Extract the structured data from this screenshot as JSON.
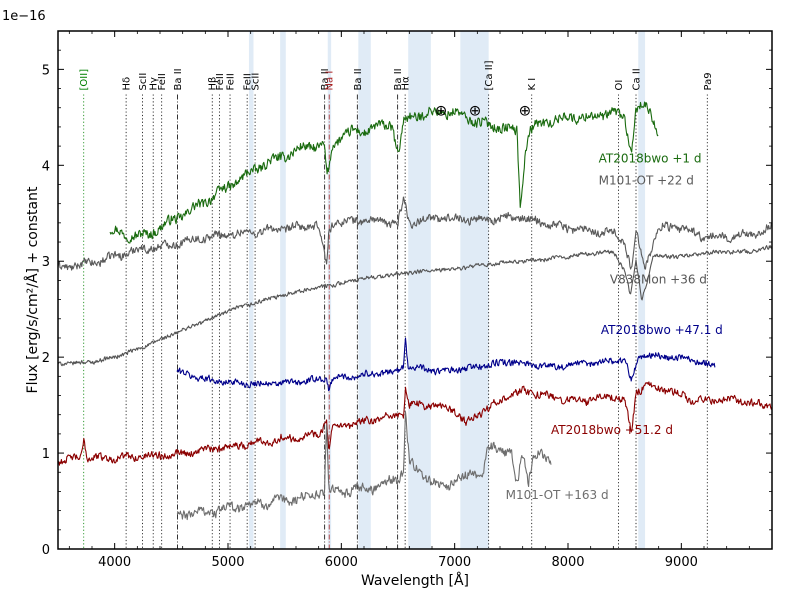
{
  "chart_data": {
    "type": "line",
    "title": "",
    "xlabel": "Wavelength [Å]",
    "ylabel": "Flux [erg/s/cm²/Å] + constant",
    "scale_label": "1e−16",
    "xlim": [
      3500,
      9800
    ],
    "ylim": [
      0,
      5.4
    ],
    "x_ticks": [
      4000,
      5000,
      6000,
      7000,
      8000,
      9000
    ],
    "x_tick_labels": [
      "4000",
      "5000",
      "6000",
      "7000",
      "8000",
      "9000"
    ],
    "y_ticks": [
      0,
      1,
      2,
      3,
      4,
      5
    ],
    "y_tick_labels": [
      "0",
      "1",
      "2",
      "3",
      "4",
      "5"
    ],
    "telluric_symbol": "⊕",
    "telluric_markers": [
      6880,
      7180,
      7620
    ],
    "shaded_bands": [
      [
        5185,
        5225
      ],
      [
        5460,
        5510
      ],
      [
        5880,
        5910
      ],
      [
        6150,
        6260
      ],
      [
        6590,
        6790
      ],
      [
        7050,
        7300
      ],
      [
        8620,
        8680
      ]
    ],
    "lines": [
      {
        "label": "[OII]",
        "x": 3727,
        "color": "#008000",
        "style": "dotted"
      },
      {
        "label": "Hδ",
        "x": 4101,
        "color": "#000000",
        "style": "dotted"
      },
      {
        "label": "ScII",
        "x": 4246,
        "color": "#000000",
        "style": "dotted"
      },
      {
        "label": "Hγ",
        "x": 4340,
        "color": "#000000",
        "style": "dotted"
      },
      {
        "label": "FeII",
        "x": 4415,
        "color": "#000000",
        "style": "dotted"
      },
      {
        "label": "Ba II",
        "x": 4554,
        "color": "#000000",
        "style": "dashdot"
      },
      {
        "label": "Hβ",
        "x": 4861,
        "color": "#000000",
        "style": "dotted"
      },
      {
        "label": "FeII",
        "x": 4924,
        "color": "#000000",
        "style": "dotted"
      },
      {
        "label": "FeII",
        "x": 5018,
        "color": "#000000",
        "style": "dotted"
      },
      {
        "label": "FeII",
        "x": 5169,
        "color": "#000000",
        "style": "dotted"
      },
      {
        "label": "ScII",
        "x": 5239,
        "color": "#000000",
        "style": "dotted"
      },
      {
        "label": "Ba II",
        "x": 5853,
        "color": "#000000",
        "style": "dashdot"
      },
      {
        "label": "Na I",
        "x": 5893,
        "color": "#aa2222",
        "style": "dashdot"
      },
      {
        "label": "Ba II",
        "x": 6141,
        "color": "#000000",
        "style": "dashdot"
      },
      {
        "label": "Ba II",
        "x": 6497,
        "color": "#000000",
        "style": "dashdot"
      },
      {
        "label": "Hα",
        "x": 6563,
        "color": "#000000",
        "style": "dotted"
      },
      {
        "label": "[Ca II]",
        "x": 7300,
        "color": "#000000",
        "style": "dotted"
      },
      {
        "label": "K I",
        "x": 7680,
        "color": "#000000",
        "style": "dotted"
      },
      {
        "label": "OI",
        "x": 8446,
        "color": "#000000",
        "style": "dotted"
      },
      {
        "label": "Ca II",
        "x": 8600,
        "color": "#000000",
        "style": "dotted"
      },
      {
        "label": "Pa9",
        "x": 9229,
        "color": "#000000",
        "style": "dotted"
      }
    ],
    "series": [
      {
        "name": "AT2018bwo +1 d",
        "color": "#1a6b0f",
        "label_x": 8270,
        "label_y": 4.03,
        "noise": 0.06,
        "bumps": 1,
        "x": [
          3960,
          4050,
          4090,
          4200,
          4300,
          4500,
          4700,
          4900,
          5100,
          5300,
          5500,
          5700,
          5850,
          5870,
          5890,
          5920,
          6000,
          6100,
          6200,
          6300,
          6450,
          6500,
          6550,
          6600,
          6800,
          7000,
          7200,
          7400,
          7550,
          7580,
          7610,
          7650,
          7700,
          7800,
          8000,
          8200,
          8400,
          8500,
          8560,
          8600,
          8700,
          8800
        ],
        "y": [
          3.32,
          3.3,
          3.28,
          3.26,
          3.28,
          3.42,
          3.55,
          3.7,
          3.85,
          4.0,
          4.1,
          4.2,
          4.2,
          3.9,
          3.95,
          4.2,
          4.3,
          4.35,
          4.35,
          4.4,
          4.42,
          4.1,
          4.45,
          4.5,
          4.55,
          4.55,
          4.45,
          4.4,
          4.35,
          3.55,
          4.0,
          4.35,
          4.4,
          4.45,
          4.5,
          4.5,
          4.55,
          4.5,
          4.1,
          4.6,
          4.6,
          4.35
        ]
      },
      {
        "name": "M101-OT +22 d",
        "color": "#5a5a5a",
        "label_x": 8270,
        "label_y": 3.8,
        "noise": 0.05,
        "bumps": 1,
        "x": [
          3500,
          3800,
          4000,
          4200,
          4400,
          4600,
          4800,
          5000,
          5200,
          5400,
          5600,
          5800,
          5870,
          5890,
          5920,
          6200,
          6500,
          6550,
          6600,
          6800,
          7000,
          7200,
          7400,
          7600,
          7800,
          8000,
          8200,
          8400,
          8500,
          8560,
          8600,
          8680,
          8800,
          9000,
          9200,
          9400,
          9600,
          9800
        ],
        "y": [
          2.93,
          2.98,
          3.05,
          3.12,
          3.15,
          3.2,
          3.25,
          3.28,
          3.3,
          3.33,
          3.35,
          3.37,
          2.95,
          3.3,
          3.4,
          3.43,
          3.4,
          3.65,
          3.4,
          3.45,
          3.45,
          3.43,
          3.45,
          3.45,
          3.4,
          3.35,
          3.32,
          3.3,
          3.2,
          2.9,
          3.3,
          2.95,
          3.35,
          3.35,
          3.25,
          3.25,
          3.28,
          3.35
        ]
      },
      {
        "name": "V838Mon +36 d",
        "color": "#555555",
        "label_x": 8370,
        "label_y": 2.77,
        "noise": 0.025,
        "bumps": 0.5,
        "x": [
          3500,
          3800,
          4000,
          4200,
          4400,
          4600,
          4800,
          5000,
          5200,
          5400,
          5600,
          5800,
          6000,
          6200,
          6400,
          6600,
          6800,
          7000,
          7200,
          7400,
          7600,
          7800,
          8000,
          8200,
          8400,
          8500,
          8550,
          8600,
          8650,
          8680,
          8750,
          9000,
          9200,
          9400,
          9600,
          9800
        ],
        "y": [
          1.93,
          1.95,
          2.0,
          2.08,
          2.18,
          2.28,
          2.38,
          2.48,
          2.55,
          2.62,
          2.68,
          2.73,
          2.77,
          2.82,
          2.85,
          2.88,
          2.9,
          2.92,
          2.95,
          2.98,
          3.0,
          3.02,
          3.05,
          3.08,
          3.1,
          2.9,
          2.65,
          3.0,
          2.6,
          2.7,
          3.05,
          3.05,
          3.08,
          3.1,
          3.1,
          3.15
        ]
      },
      {
        "name": "AT2018bwo +47.1 d",
        "color": "#00008b",
        "label_x": 8290,
        "label_y": 2.24,
        "noise": 0.04,
        "bumps": 0.8,
        "x": [
          4550,
          4700,
          4900,
          5100,
          5300,
          5500,
          5700,
          5870,
          5890,
          5920,
          6100,
          6300,
          6500,
          6550,
          6565,
          6590,
          6700,
          6900,
          7100,
          7300,
          7500,
          7700,
          7900,
          8100,
          8300,
          8500,
          8560,
          8620,
          8700,
          8900,
          9100,
          9300
        ],
        "y": [
          1.85,
          1.8,
          1.75,
          1.73,
          1.72,
          1.73,
          1.75,
          1.78,
          1.65,
          1.78,
          1.8,
          1.83,
          1.85,
          1.9,
          2.25,
          1.9,
          1.88,
          1.85,
          1.88,
          1.92,
          1.95,
          1.92,
          1.9,
          1.93,
          1.95,
          1.98,
          1.75,
          2.0,
          2.02,
          2.0,
          1.98,
          1.9
        ]
      },
      {
        "name": "AT2018bwo +51.2 d",
        "color": "#8b0000",
        "label_x": 7850,
        "label_y": 1.2,
        "noise": 0.045,
        "bumps": 1,
        "x": [
          3500,
          3700,
          3730,
          3760,
          4000,
          4300,
          4600,
          4900,
          5200,
          5500,
          5800,
          5870,
          5890,
          5920,
          6100,
          6300,
          6500,
          6550,
          6565,
          6600,
          6800,
          7000,
          7100,
          7200,
          7400,
          7600,
          7800,
          8000,
          8200,
          8400,
          8500,
          8560,
          8600,
          8700,
          8900,
          9100,
          9300,
          9500,
          9700,
          9800
        ],
        "y": [
          0.92,
          0.95,
          1.15,
          0.95,
          0.95,
          0.97,
          1.0,
          1.05,
          1.1,
          1.15,
          1.2,
          1.35,
          1.0,
          1.25,
          1.3,
          1.35,
          1.4,
          1.4,
          1.7,
          1.5,
          1.5,
          1.45,
          1.3,
          1.4,
          1.55,
          1.65,
          1.6,
          1.55,
          1.55,
          1.6,
          1.55,
          1.2,
          1.65,
          1.7,
          1.65,
          1.55,
          1.55,
          1.55,
          1.5,
          1.5
        ]
      },
      {
        "name": "M101-OT +163 d",
        "color": "#6e6e6e",
        "label_x": 7450,
        "label_y": 0.52,
        "noise": 0.06,
        "bumps": 1,
        "x": [
          4550,
          4700,
          4900,
          5100,
          5300,
          5500,
          5700,
          5850,
          5870,
          5890,
          5920,
          6100,
          6300,
          6500,
          6550,
          6565,
          6600,
          6800,
          6900,
          7000,
          7100,
          7200,
          7250,
          7300,
          7400,
          7500,
          7550,
          7600,
          7650,
          7700,
          7800,
          7850
        ],
        "y": [
          0.35,
          0.38,
          0.4,
          0.45,
          0.48,
          0.5,
          0.55,
          0.6,
          1.3,
          0.6,
          0.6,
          0.6,
          0.65,
          0.75,
          0.8,
          1.45,
          0.9,
          0.7,
          0.65,
          0.7,
          0.75,
          0.8,
          0.8,
          1.05,
          1.05,
          1.0,
          0.65,
          1.0,
          0.7,
          1.0,
          0.95,
          0.9
        ]
      }
    ]
  }
}
